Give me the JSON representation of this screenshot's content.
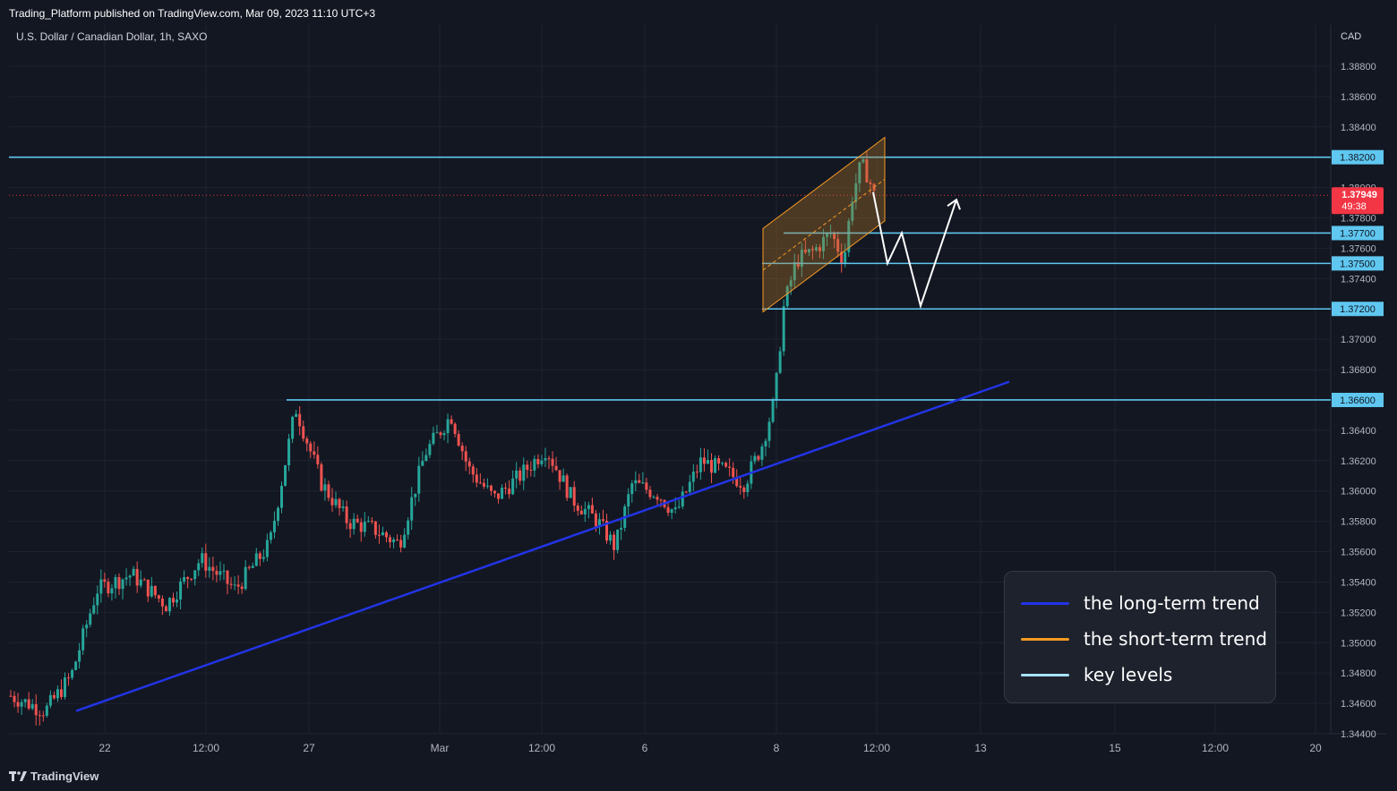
{
  "header": {
    "published_text": "Trading_Platform published on TradingView.com, Mar 09, 2023 11:10 UTC+3",
    "symbol_text": "U.S. Dollar / Canadian Dollar, 1h, SAXO"
  },
  "footer": {
    "brand": "TradingView"
  },
  "chart_data": {
    "type": "candlestick",
    "symbol": "U.S. Dollar / Canadian Dollar",
    "interval": "1h",
    "exchange": "SAXO",
    "currency_label": "CAD",
    "ylim": [
      1.344,
      1.389
    ],
    "y_ticks": [
      "1.38800",
      "1.38600",
      "1.38400",
      "1.38200",
      "1.38000",
      "1.37800",
      "1.37600",
      "1.37400",
      "1.37200",
      "1.37000",
      "1.36800",
      "1.36600",
      "1.36400",
      "1.36200",
      "1.36000",
      "1.35800",
      "1.35600",
      "1.35400",
      "1.35200",
      "1.35000",
      "1.34800",
      "1.34600",
      "1.34400"
    ],
    "x_ticks": [
      "22",
      "12:00",
      "27",
      "Mar",
      "12:00",
      "6",
      "8",
      "12:00",
      "13",
      "15",
      "12:00",
      "20"
    ],
    "price_path": [
      {
        "t": 0,
        "p": 1.3465
      },
      {
        "t": 0.04,
        "p": 1.3455
      },
      {
        "t": 0.07,
        "p": 1.3478
      },
      {
        "t": 0.1,
        "p": 1.3535
      },
      {
        "t": 0.14,
        "p": 1.3545
      },
      {
        "t": 0.18,
        "p": 1.3525
      },
      {
        "t": 0.22,
        "p": 1.3555
      },
      {
        "t": 0.26,
        "p": 1.3535
      },
      {
        "t": 0.3,
        "p": 1.3565
      },
      {
        "t": 0.33,
        "p": 1.3655
      },
      {
        "t": 0.36,
        "p": 1.3605
      },
      {
        "t": 0.39,
        "p": 1.358
      },
      {
        "t": 0.42,
        "p": 1.3575
      },
      {
        "t": 0.45,
        "p": 1.3565
      },
      {
        "t": 0.48,
        "p": 1.3625
      },
      {
        "t": 0.51,
        "p": 1.365
      },
      {
        "t": 0.53,
        "p": 1.3615
      },
      {
        "t": 0.56,
        "p": 1.3595
      },
      {
        "t": 0.59,
        "p": 1.361
      },
      {
        "t": 0.62,
        "p": 1.3628
      },
      {
        "t": 0.65,
        "p": 1.3595
      },
      {
        "t": 0.68,
        "p": 1.358
      },
      {
        "t": 0.7,
        "p": 1.3563
      },
      {
        "t": 0.72,
        "p": 1.3605
      },
      {
        "t": 0.75,
        "p": 1.3598
      },
      {
        "t": 0.77,
        "p": 1.3585
      },
      {
        "t": 0.8,
        "p": 1.362
      },
      {
        "t": 0.83,
        "p": 1.3612
      },
      {
        "t": 0.85,
        "p": 1.3605
      },
      {
        "t": 0.87,
        "p": 1.363
      },
      {
        "t": 0.885,
        "p": 1.366
      },
      {
        "t": 0.895,
        "p": 1.372
      },
      {
        "t": 0.91,
        "p": 1.3752
      },
      {
        "t": 0.93,
        "p": 1.3758
      },
      {
        "t": 0.95,
        "p": 1.377
      },
      {
        "t": 0.965,
        "p": 1.3752
      },
      {
        "t": 0.975,
        "p": 1.3795
      },
      {
        "t": 0.985,
        "p": 1.3815
      },
      {
        "t": 0.993,
        "p": 1.3808
      },
      {
        "t": 1,
        "p": 1.37949
      }
    ],
    "last_price": "1.37949",
    "countdown": "49:38",
    "key_levels": [
      {
        "price": 1.382,
        "label": "1.38200"
      },
      {
        "price": 1.377,
        "label": "1.37700"
      },
      {
        "price": 1.375,
        "label": "1.37500"
      },
      {
        "price": 1.372,
        "label": "1.37200"
      },
      {
        "price": 1.366,
        "label": "1.36600"
      }
    ],
    "long_term_trend": {
      "from_price": 1.3455,
      "to_price": 1.3672
    },
    "short_term_channel": {
      "lower_start": 1.3718,
      "upper_start": 1.3773,
      "lower_end": 1.3778,
      "upper_end": 1.3833
    },
    "projection_path": [
      1.3797,
      1.375,
      1.377,
      1.3722,
      1.3792
    ],
    "colors": {
      "background": "#131722",
      "grid": "#1f2330",
      "up": "#26a69a",
      "down": "#ef5350",
      "key_level": "#5fc7f0",
      "long_term": "#2234e6",
      "short_term": "#f59a23",
      "channel_fill": "rgba(180,120,40,0.35)",
      "price_label": "#f23645",
      "projection": "#ffffff"
    }
  },
  "legend": {
    "items": [
      {
        "label": "the long-term trend",
        "color": "#2234e6"
      },
      {
        "label": "the short-term trend",
        "color": "#f59a23"
      },
      {
        "label": "key levels",
        "color": "#a8e2ff"
      }
    ]
  }
}
